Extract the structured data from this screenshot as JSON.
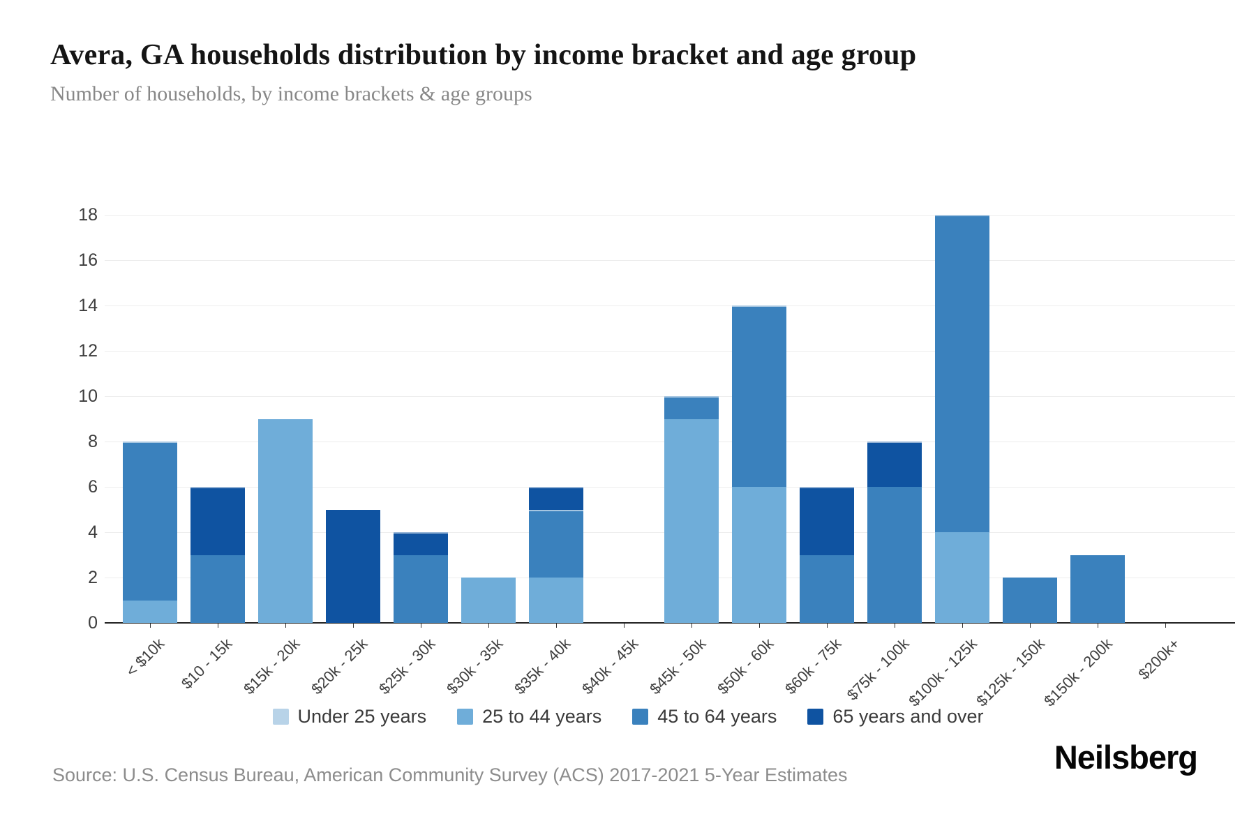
{
  "header": {
    "title": "Avera, GA households distribution by income bracket and age group",
    "subtitle": "Number of households, by income brackets & age groups"
  },
  "chart_data": {
    "type": "bar",
    "stacked": true,
    "title": "Avera, GA households distribution by income bracket and age group",
    "subtitle": "Number of households, by income brackets & age groups",
    "xlabel": "",
    "ylabel": "",
    "ylim": [
      0,
      18
    ],
    "yticks": [
      0,
      2,
      4,
      6,
      8,
      10,
      12,
      14,
      16,
      18
    ],
    "grid": true,
    "legend_position": "bottom",
    "categories": [
      "< $10k",
      "$10 - 15k",
      "$15k - 20k",
      "$20k - 25k",
      "$25k - 30k",
      "$30k - 35k",
      "$35k - 40k",
      "$40k - 45k",
      "$45k - 50k",
      "$50k - 60k",
      "$60k - 75k",
      "$75k - 100k",
      "$100k - 125k",
      "$125k - 150k",
      "$150k - 200k",
      "$200k+"
    ],
    "series": [
      {
        "name": "Under 25 years",
        "color": "#b8d3e8",
        "values": [
          0,
          0,
          0,
          0,
          0,
          0,
          0,
          0,
          0,
          0,
          0,
          0,
          0,
          0,
          0,
          0
        ]
      },
      {
        "name": "25 to 44 years",
        "color": "#6fadd9",
        "values": [
          1,
          0,
          9,
          0,
          0,
          2,
          2,
          0,
          9,
          6,
          0,
          0,
          4,
          0,
          0,
          0
        ]
      },
      {
        "name": "45 to 64 years",
        "color": "#3a81bd",
        "values": [
          7,
          3,
          0,
          0,
          3,
          0,
          3,
          0,
          1,
          8,
          3,
          6,
          14,
          2,
          3,
          0
        ]
      },
      {
        "name": "65 years and over",
        "color": "#0f53a1",
        "values": [
          0,
          3,
          0,
          5,
          1,
          0,
          1,
          0,
          0,
          0,
          3,
          2,
          0,
          0,
          0,
          0
        ]
      }
    ],
    "totals": [
      8,
      6,
      9,
      5,
      4,
      2,
      6,
      0,
      10,
      14,
      6,
      8,
      18,
      2,
      3,
      0
    ]
  },
  "footer": {
    "source": "Source: U.S. Census Bureau, American Community Survey (ACS) 2017-2021 5-Year Estimates",
    "brand": "Neilsberg"
  }
}
